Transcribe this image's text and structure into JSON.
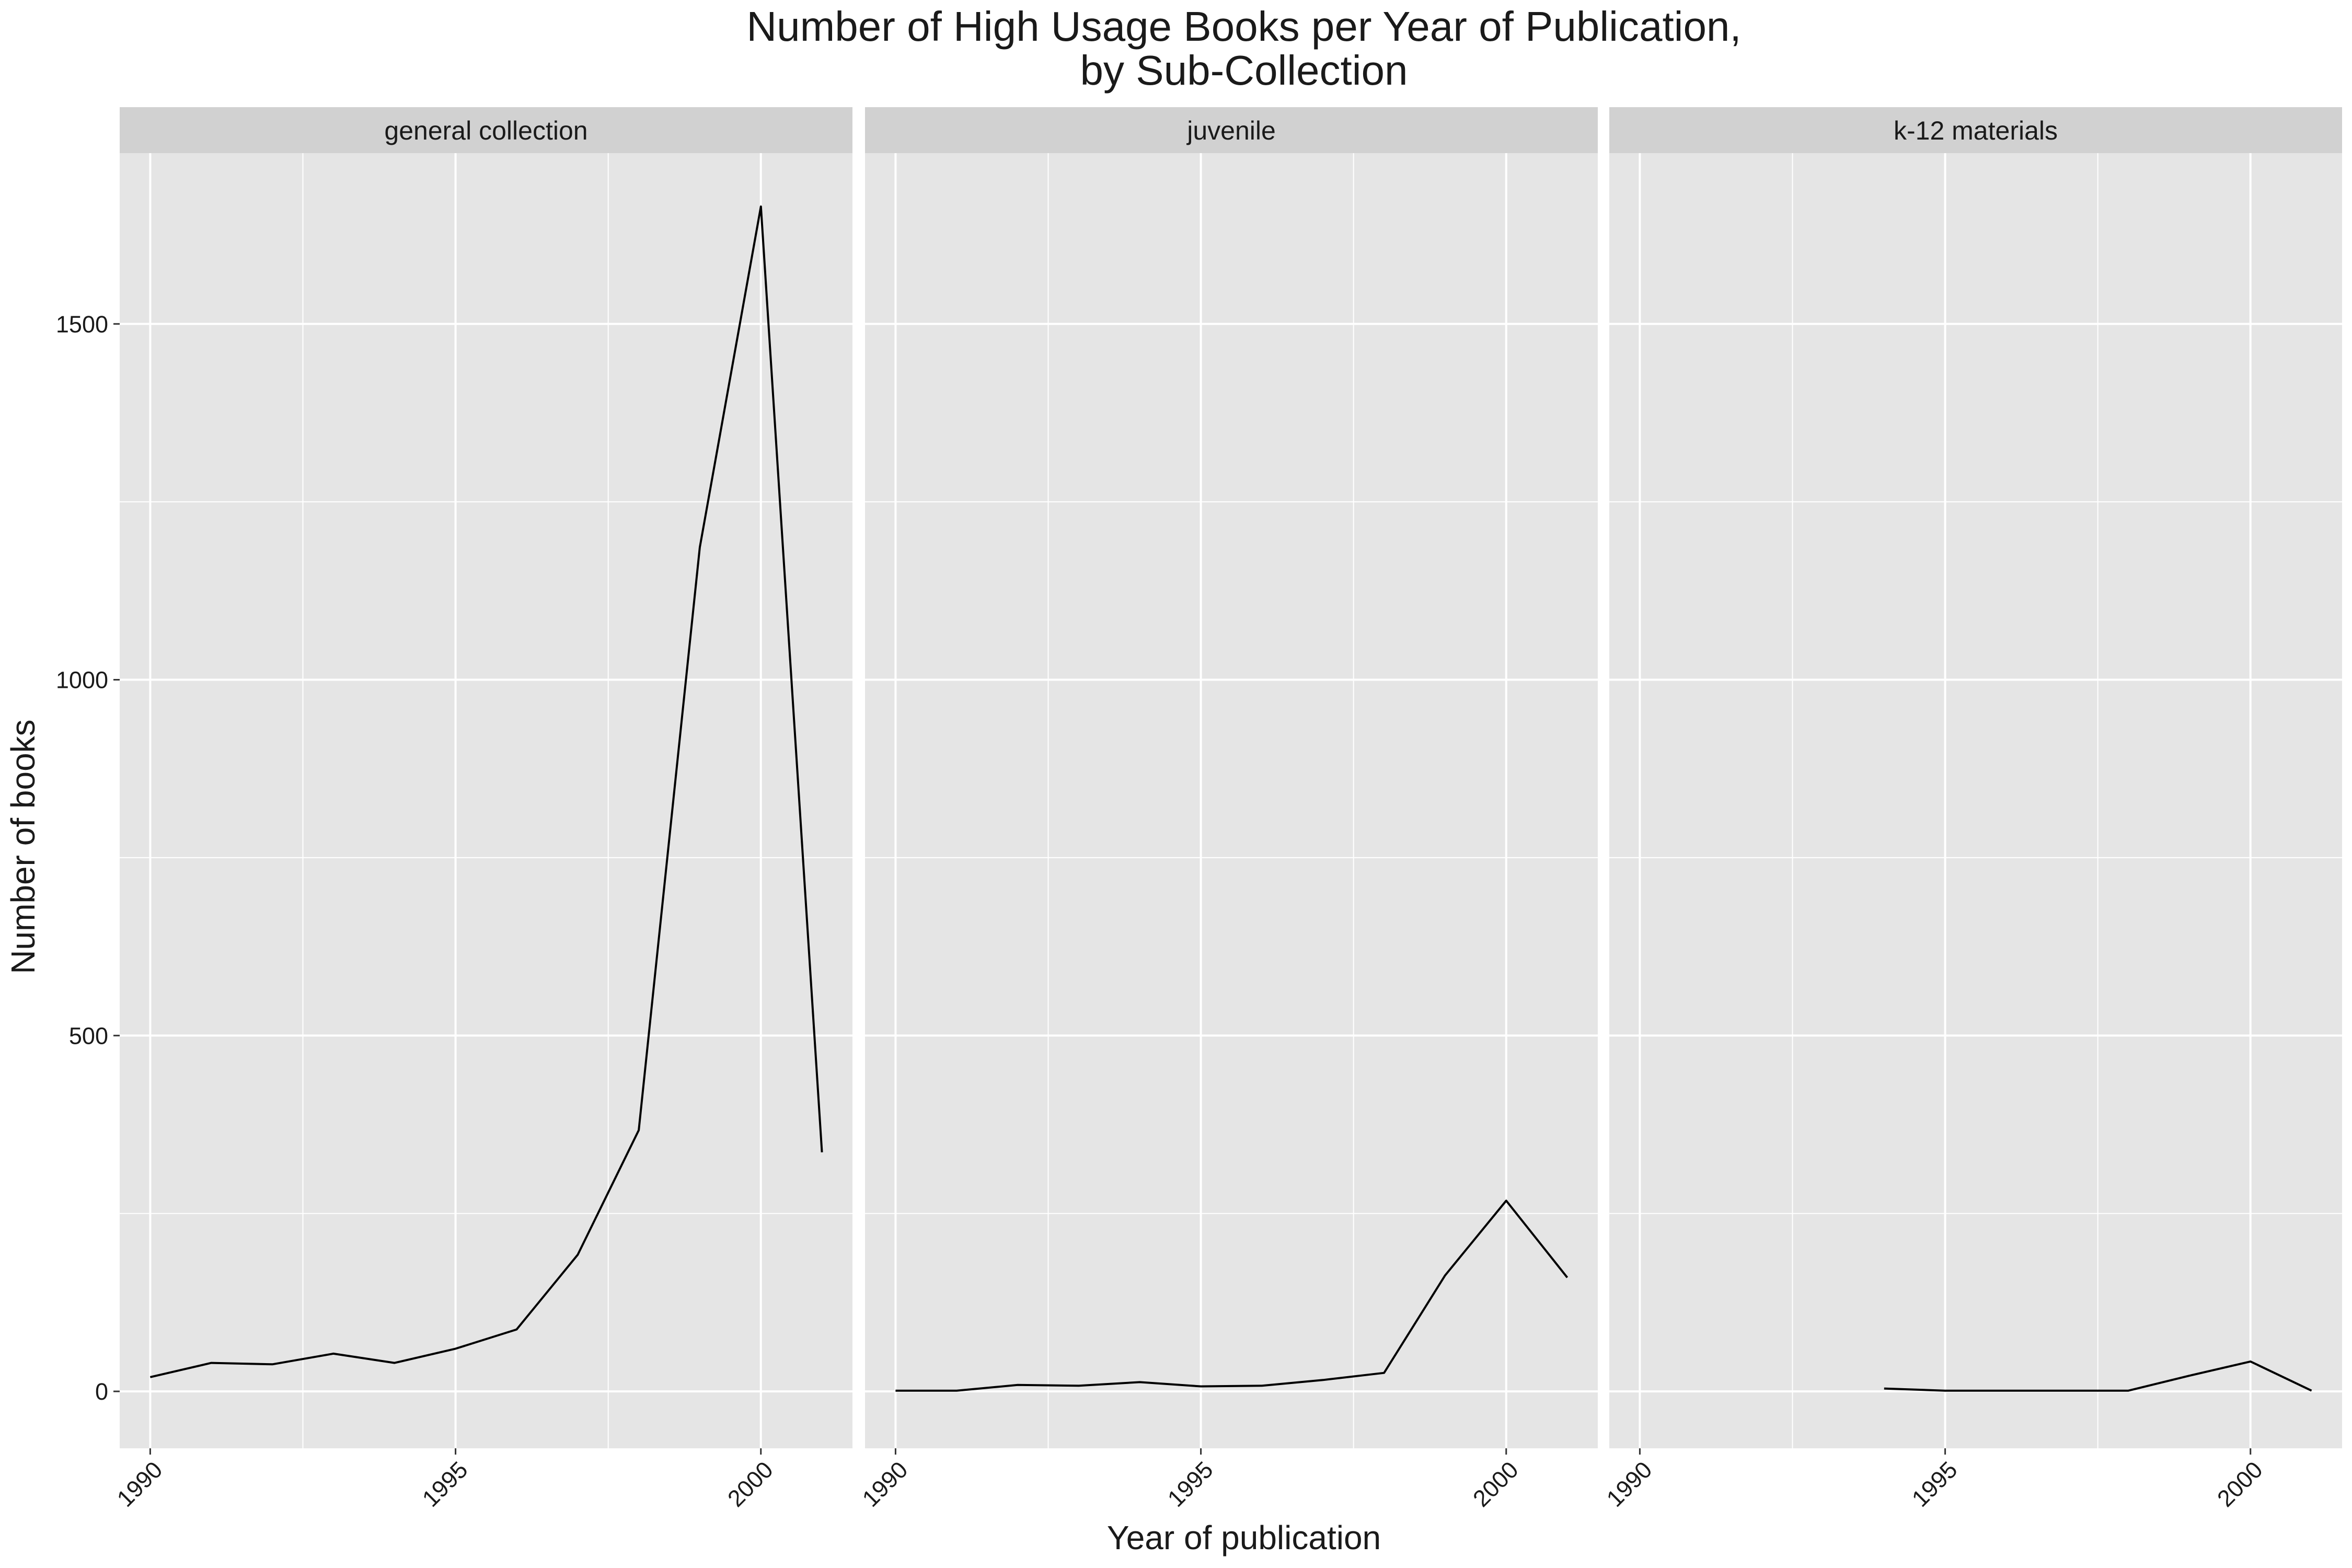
{
  "chart_data": {
    "type": "line",
    "title": "Number of High Usage Books per Year of Publication,",
    "subtitle": "by Sub-Collection",
    "xlabel": "Year of publication",
    "ylabel": "Number of books",
    "xlim": [
      1989.5,
      2001.5
    ],
    "ylim": [
      -80,
      1740
    ],
    "x_ticks": [
      1990,
      1995,
      2000
    ],
    "x_minor_ticks": [
      1992.5,
      1997.5
    ],
    "y_ticks": [
      0,
      500,
      1000,
      1500
    ],
    "y_minor_ticks": [
      250,
      750,
      1250
    ],
    "grid": true,
    "line_color": "#000000",
    "panel_background": "#e5e5e5",
    "strip_background": "#d1d1d1",
    "grid_color": "#ffffff",
    "facets": [
      {
        "label": "general collection",
        "x": [
          1990,
          1991,
          1992,
          1993,
          1994,
          1995,
          1996,
          1997,
          1998,
          1999,
          2000,
          2001
        ],
        "y": [
          20,
          40,
          38,
          53,
          40,
          60,
          87,
          192,
          367,
          1186,
          1665,
          336
        ]
      },
      {
        "label": "juvenile",
        "x": [
          1990,
          1991,
          1992,
          1993,
          1994,
          1995,
          1996,
          1997,
          1998,
          1999,
          2000,
          2001
        ],
        "y": [
          1,
          1,
          9,
          8,
          13,
          7,
          8,
          16,
          26,
          163,
          268,
          160
        ]
      },
      {
        "label": "k-12 materials",
        "x": [
          1994,
          1995,
          1996,
          1997,
          1998,
          1999,
          2000,
          2001
        ],
        "y": [
          4,
          1,
          1,
          1,
          1,
          22,
          42,
          1
        ]
      }
    ]
  }
}
